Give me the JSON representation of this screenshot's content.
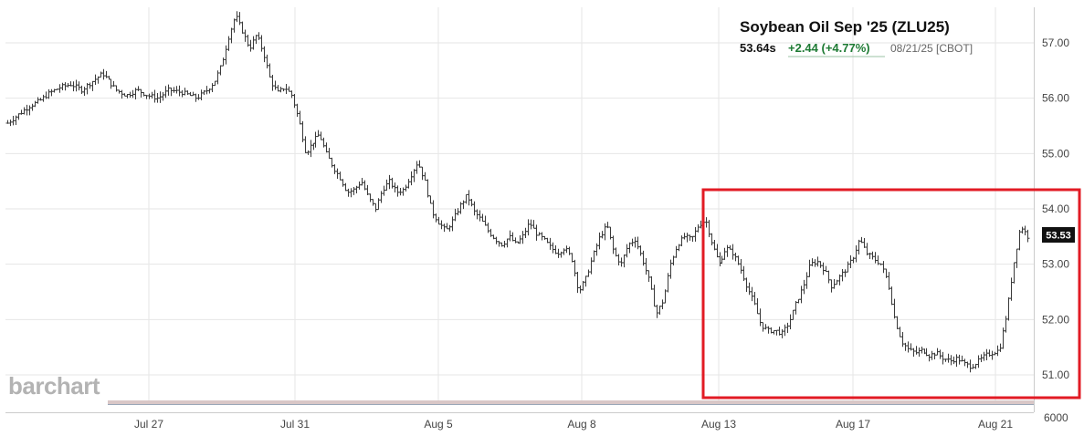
{
  "chart_data": {
    "type": "ohlc",
    "title": "Soybean Oil Sep '25 (ZLU25)",
    "quote": {
      "last": "53.64s",
      "change": "+2.44 (+4.77%)",
      "meta": "08/21/25 [CBOT]"
    },
    "current_price_label": "53.53",
    "y_ticks": [
      "57.00",
      "56.00",
      "55.00",
      "54.00",
      "53.00",
      "52.00",
      "51.00"
    ],
    "y_tick_values": [
      57,
      56,
      55,
      54,
      53,
      52,
      51
    ],
    "ylim": [
      50.3,
      57.65
    ],
    "x_ticks": [
      "Jul 27",
      "Jul 31",
      "Aug 5",
      "Aug 8",
      "Aug 13",
      "Aug 17",
      "Aug 21"
    ],
    "volume_axis_label": "6000",
    "watermark": "barchart",
    "highlight": "red rectangle around Aug 13 – Aug 21",
    "close_path": [
      [
        0,
        55.55
      ],
      [
        6,
        55.7
      ],
      [
        12,
        55.85
      ],
      [
        18,
        55.95
      ],
      [
        24,
        56.1
      ],
      [
        30,
        56.2
      ],
      [
        36,
        56.25
      ],
      [
        42,
        56.15
      ],
      [
        48,
        56.3
      ],
      [
        54,
        56.45
      ],
      [
        58,
        56.3
      ],
      [
        62,
        56.15
      ],
      [
        68,
        56.05
      ],
      [
        74,
        56.15
      ],
      [
        80,
        56.05
      ],
      [
        86,
        56.0
      ],
      [
        92,
        56.15
      ],
      [
        100,
        56.1
      ],
      [
        108,
        56.0
      ],
      [
        114,
        56.15
      ],
      [
        118,
        56.3
      ],
      [
        122,
        56.6
      ],
      [
        126,
        57.1
      ],
      [
        130,
        57.5
      ],
      [
        134,
        57.2
      ],
      [
        138,
        56.9
      ],
      [
        142,
        57.15
      ],
      [
        146,
        56.8
      ],
      [
        150,
        56.3
      ],
      [
        154,
        56.1
      ],
      [
        158,
        56.2
      ],
      [
        162,
        56.05
      ],
      [
        166,
        55.6
      ],
      [
        170,
        55.0
      ],
      [
        174,
        55.2
      ],
      [
        178,
        55.35
      ],
      [
        182,
        55.0
      ],
      [
        186,
        54.75
      ],
      [
        190,
        54.55
      ],
      [
        194,
        54.3
      ],
      [
        198,
        54.35
      ],
      [
        202,
        54.5
      ],
      [
        206,
        54.2
      ],
      [
        210,
        54.0
      ],
      [
        214,
        54.35
      ],
      [
        218,
        54.5
      ],
      [
        222,
        54.3
      ],
      [
        226,
        54.35
      ],
      [
        230,
        54.6
      ],
      [
        234,
        54.85
      ],
      [
        238,
        54.5
      ],
      [
        242,
        53.95
      ],
      [
        246,
        53.75
      ],
      [
        250,
        53.6
      ],
      [
        254,
        53.8
      ],
      [
        258,
        54.05
      ],
      [
        262,
        54.25
      ],
      [
        266,
        53.95
      ],
      [
        270,
        53.8
      ],
      [
        274,
        53.6
      ],
      [
        278,
        53.45
      ],
      [
        282,
        53.35
      ],
      [
        286,
        53.5
      ],
      [
        290,
        53.35
      ],
      [
        294,
        53.5
      ],
      [
        298,
        53.75
      ],
      [
        302,
        53.55
      ],
      [
        306,
        53.45
      ],
      [
        310,
        53.3
      ],
      [
        314,
        53.2
      ],
      [
        318,
        53.3
      ],
      [
        322,
        53.1
      ],
      [
        326,
        52.5
      ],
      [
        330,
        52.75
      ],
      [
        334,
        53.15
      ],
      [
        338,
        53.5
      ],
      [
        342,
        53.7
      ],
      [
        346,
        53.2
      ],
      [
        350,
        53.0
      ],
      [
        354,
        53.35
      ],
      [
        358,
        53.45
      ],
      [
        362,
        53.1
      ],
      [
        366,
        52.7
      ],
      [
        370,
        52.1
      ],
      [
        374,
        52.35
      ],
      [
        378,
        53.0
      ],
      [
        382,
        53.35
      ],
      [
        386,
        53.5
      ],
      [
        390,
        53.45
      ],
      [
        394,
        53.7
      ],
      [
        398,
        53.8
      ],
      [
        402,
        53.35
      ],
      [
        406,
        53.0
      ],
      [
        410,
        53.3
      ],
      [
        414,
        53.2
      ],
      [
        418,
        52.95
      ],
      [
        422,
        52.6
      ],
      [
        426,
        52.3
      ],
      [
        430,
        51.9
      ],
      [
        434,
        51.8
      ],
      [
        438,
        51.8
      ],
      [
        442,
        51.75
      ],
      [
        446,
        51.95
      ],
      [
        450,
        52.3
      ],
      [
        454,
        52.6
      ],
      [
        458,
        53.0
      ],
      [
        462,
        53.05
      ],
      [
        466,
        52.9
      ],
      [
        470,
        52.6
      ],
      [
        474,
        52.75
      ],
      [
        478,
        52.9
      ],
      [
        482,
        53.1
      ],
      [
        486,
        53.45
      ],
      [
        490,
        53.2
      ],
      [
        494,
        53.1
      ],
      [
        498,
        53.0
      ],
      [
        502,
        52.7
      ],
      [
        506,
        52.0
      ],
      [
        510,
        51.6
      ],
      [
        514,
        51.45
      ],
      [
        518,
        51.4
      ],
      [
        522,
        51.45
      ],
      [
        526,
        51.35
      ],
      [
        530,
        51.4
      ],
      [
        534,
        51.3
      ],
      [
        538,
        51.25
      ],
      [
        542,
        51.3
      ],
      [
        546,
        51.2
      ],
      [
        550,
        51.15
      ],
      [
        554,
        51.25
      ],
      [
        558,
        51.35
      ],
      [
        562,
        51.4
      ],
      [
        566,
        51.45
      ],
      [
        570,
        52.1
      ],
      [
        574,
        53.0
      ],
      [
        578,
        53.7
      ],
      [
        582,
        53.5
      ]
    ]
  }
}
